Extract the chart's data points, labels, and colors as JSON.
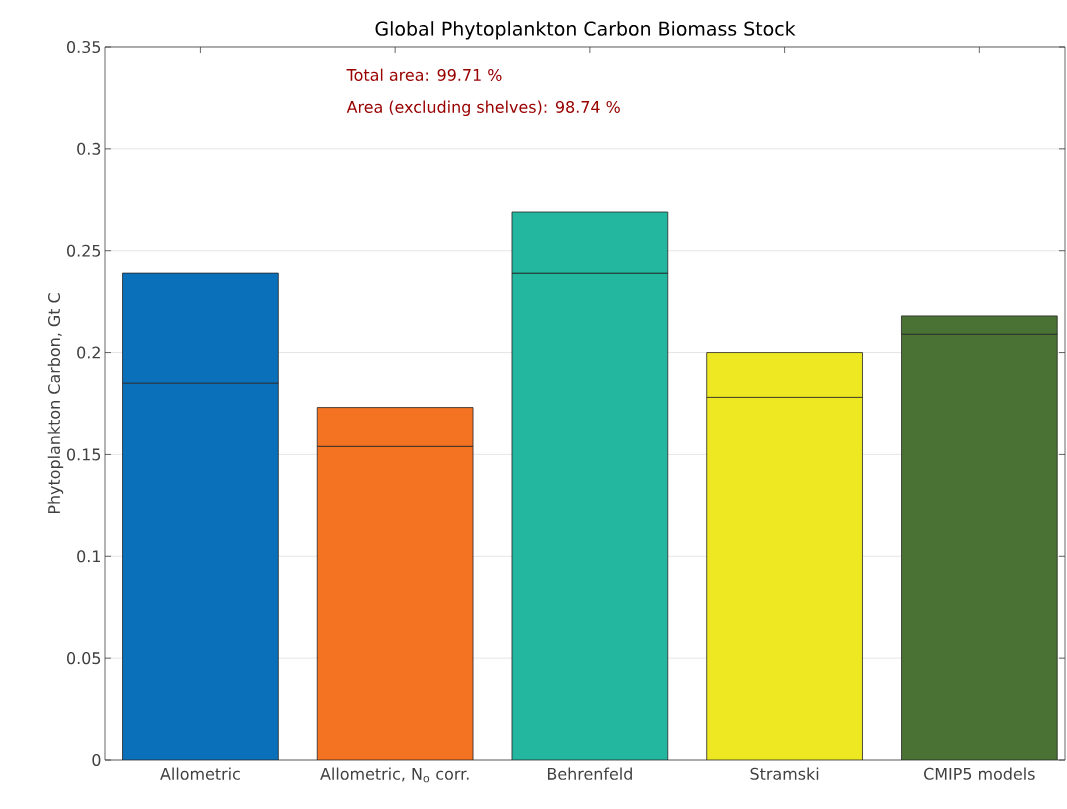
{
  "chart_data": {
    "type": "bar",
    "stacked": true,
    "title": "Global Phytoplankton Carbon Biomass Stock",
    "ylabel": "Phytoplankton Carbon, Gt C",
    "categories": [
      "Allometric",
      "Allometric, N$_{o}$  corr.",
      "Behrenfeld",
      "Stramski",
      "CMIP5 models"
    ],
    "series": [
      {
        "colors": [
          "#0b70ba",
          "#f37322",
          "#23b7a0",
          "#eee822",
          "#497234"
        ],
        "values": [
          0.185,
          0.154,
          0.239,
          0.178,
          0.209
        ]
      },
      {
        "colors": [
          "#0b70ba",
          "#f37322",
          "#23b7a0",
          "#eee822",
          "#497234"
        ],
        "values": [
          0.054,
          0.019,
          0.03,
          0.022,
          0.009
        ]
      }
    ],
    "ylim": [
      0,
      0.35
    ],
    "yticks": [
      0,
      0.05,
      0.1,
      0.15,
      0.2,
      0.25,
      0.3,
      0.35
    ],
    "grid": "y",
    "annotations": [
      "Total area:  99.71 %",
      "Area  (excluding shelves):  98.74 %"
    ]
  }
}
